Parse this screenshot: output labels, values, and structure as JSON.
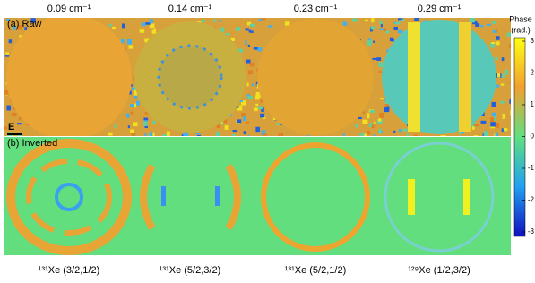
{
  "figure": {
    "columns": [
      "0.09 cm⁻¹",
      "0.14 cm⁻¹",
      "0.23 cm⁻¹",
      "0.29 cm⁻¹"
    ],
    "rows": [
      "(a) Raw",
      "(b) Inverted"
    ],
    "scale_label": "E",
    "panel_labels": [
      "¹³¹Xe (3/2,1/2)",
      "¹³¹Xe (5/2,3/2)",
      "¹³¹Xe (5/2,1/2)",
      "¹²⁹Xe (1/2,3/2)"
    ],
    "colorbar": {
      "title": [
        "Phase",
        "(rad.)"
      ],
      "ticks": [
        "3",
        "2",
        "1",
        "0",
        "-1",
        "-2",
        "-3"
      ]
    }
  }
}
